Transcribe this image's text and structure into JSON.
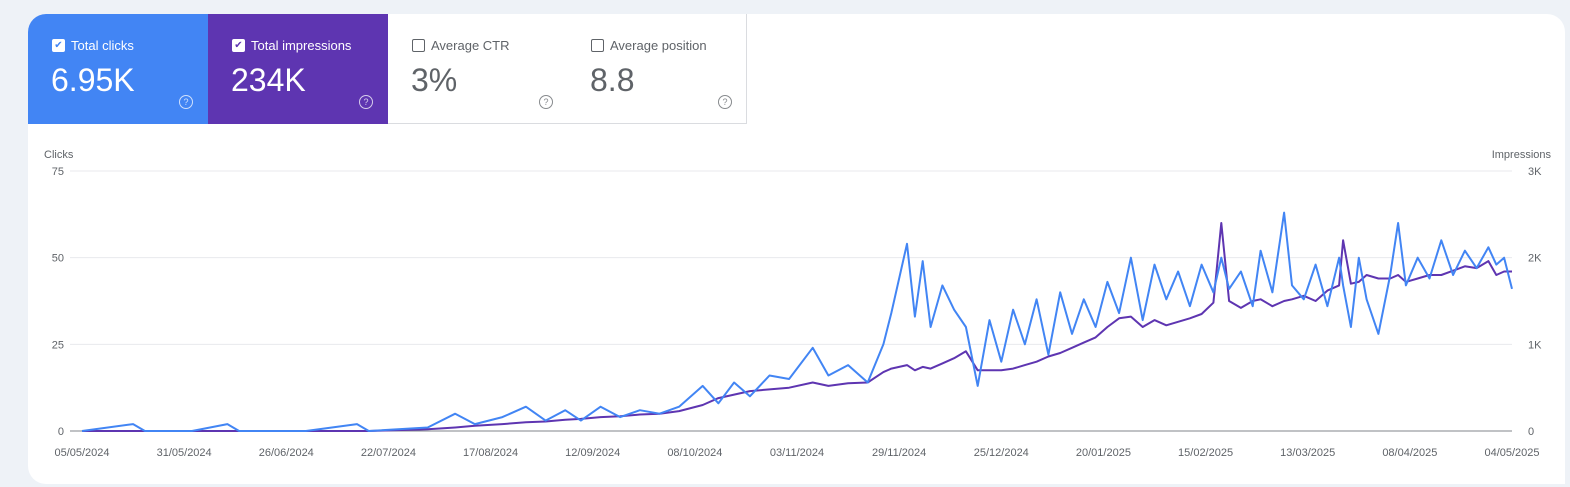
{
  "metrics": [
    {
      "label": "Total clicks",
      "value": "6.95K",
      "checked": true,
      "color": "#4285f4"
    },
    {
      "label": "Total impressions",
      "value": "234K",
      "checked": true,
      "color": "#5e35b1"
    },
    {
      "label": "Average CTR",
      "value": "3%",
      "checked": false
    },
    {
      "label": "Average position",
      "value": "8.8",
      "checked": false
    }
  ],
  "chart_data": {
    "type": "line",
    "left_axis_label": "Clicks",
    "right_axis_label": "Impressions",
    "left_ylim": [
      0,
      75
    ],
    "right_ylim": [
      0,
      3000
    ],
    "left_ticks": [
      "0",
      "25",
      "50",
      "75"
    ],
    "right_ticks": [
      "0",
      "1K",
      "2K",
      "3K"
    ],
    "x_range": [
      "2024-05-05",
      "2025-05-04"
    ],
    "x_ticks": [
      "05/05/2024",
      "31/05/2024",
      "26/06/2024",
      "22/07/2024",
      "17/08/2024",
      "12/09/2024",
      "08/10/2024",
      "03/11/2024",
      "29/11/2024",
      "25/12/2024",
      "20/01/2025",
      "15/02/2025",
      "13/03/2025",
      "08/04/2025",
      "04/05/2025"
    ],
    "grid": true,
    "series": [
      {
        "name": "Clicks",
        "axis": "left",
        "color": "#4285f4"
      },
      {
        "name": "Impressions",
        "axis": "right",
        "color": "#5e35b1"
      }
    ],
    "points": [
      [
        "2024-05-05",
        0,
        0
      ],
      [
        "2024-05-18",
        2,
        0
      ],
      [
        "2024-05-21",
        0,
        0
      ],
      [
        "2024-06-02",
        0,
        0
      ],
      [
        "2024-06-11",
        2,
        0
      ],
      [
        "2024-06-14",
        0,
        0
      ],
      [
        "2024-07-01",
        0,
        0
      ],
      [
        "2024-07-14",
        2,
        0
      ],
      [
        "2024-07-17",
        0,
        0
      ],
      [
        "2024-08-01",
        1,
        20
      ],
      [
        "2024-08-08",
        5,
        40
      ],
      [
        "2024-08-13",
        2,
        60
      ],
      [
        "2024-08-20",
        4,
        80
      ],
      [
        "2024-08-26",
        7,
        100
      ],
      [
        "2024-08-31",
        3,
        110
      ],
      [
        "2024-09-05",
        6,
        130
      ],
      [
        "2024-09-09",
        3,
        140
      ],
      [
        "2024-09-14",
        7,
        160
      ],
      [
        "2024-09-19",
        4,
        170
      ],
      [
        "2024-09-24",
        6,
        190
      ],
      [
        "2024-09-29",
        5,
        200
      ],
      [
        "2024-10-04",
        7,
        230
      ],
      [
        "2024-10-10",
        13,
        300
      ],
      [
        "2024-10-14",
        8,
        380
      ],
      [
        "2024-10-18",
        14,
        420
      ],
      [
        "2024-10-22",
        10,
        460
      ],
      [
        "2024-10-27",
        16,
        480
      ],
      [
        "2024-11-01",
        15,
        500
      ],
      [
        "2024-11-07",
        24,
        560
      ],
      [
        "2024-11-11",
        16,
        520
      ],
      [
        "2024-11-16",
        19,
        550
      ],
      [
        "2024-11-21",
        14,
        560
      ],
      [
        "2024-11-25",
        25,
        680
      ],
      [
        "2024-11-27",
        34,
        720
      ],
      [
        "2024-12-01",
        54,
        760
      ],
      [
        "2024-12-03",
        33,
        700
      ],
      [
        "2024-12-05",
        49,
        740
      ],
      [
        "2024-12-07",
        30,
        720
      ],
      [
        "2024-12-10",
        42,
        780
      ],
      [
        "2024-12-13",
        35,
        840
      ],
      [
        "2024-12-16",
        30,
        920
      ],
      [
        "2024-12-19",
        13,
        700
      ],
      [
        "2024-12-22",
        32,
        700
      ],
      [
        "2024-12-25",
        20,
        700
      ],
      [
        "2024-12-28",
        35,
        720
      ],
      [
        "2024-12-31",
        25,
        760
      ],
      [
        "2025-01-03",
        38,
        800
      ],
      [
        "2025-01-06",
        22,
        860
      ],
      [
        "2025-01-09",
        40,
        900
      ],
      [
        "2025-01-12",
        28,
        960
      ],
      [
        "2025-01-15",
        38,
        1020
      ],
      [
        "2025-01-18",
        30,
        1080
      ],
      [
        "2025-01-21",
        43,
        1200
      ],
      [
        "2025-01-24",
        34,
        1300
      ],
      [
        "2025-01-27",
        50,
        1320
      ],
      [
        "2025-01-30",
        32,
        1200
      ],
      [
        "2025-02-02",
        48,
        1280
      ],
      [
        "2025-02-05",
        38,
        1220
      ],
      [
        "2025-02-08",
        46,
        1260
      ],
      [
        "2025-02-11",
        36,
        1300
      ],
      [
        "2025-02-14",
        48,
        1350
      ],
      [
        "2025-02-17",
        40,
        1480
      ],
      [
        "2025-02-19",
        50,
        2400
      ],
      [
        "2025-02-21",
        41,
        1500
      ],
      [
        "2025-02-24",
        46,
        1420
      ],
      [
        "2025-02-27",
        36,
        1500
      ],
      [
        "2025-03-01",
        52,
        1520
      ],
      [
        "2025-03-04",
        40,
        1440
      ],
      [
        "2025-03-07",
        63,
        1500
      ],
      [
        "2025-03-09",
        42,
        1520
      ],
      [
        "2025-03-12",
        38,
        1560
      ],
      [
        "2025-03-15",
        48,
        1500
      ],
      [
        "2025-03-18",
        36,
        1620
      ],
      [
        "2025-03-21",
        50,
        1680
      ],
      [
        "2025-03-22",
        42,
        2200
      ],
      [
        "2025-03-24",
        30,
        1700
      ],
      [
        "2025-03-26",
        50,
        1720
      ],
      [
        "2025-03-28",
        38,
        1800
      ],
      [
        "2025-03-31",
        28,
        1760
      ],
      [
        "2025-04-03",
        45,
        1760
      ],
      [
        "2025-04-05",
        60,
        1800
      ],
      [
        "2025-04-07",
        42,
        1720
      ],
      [
        "2025-04-10",
        50,
        1760
      ],
      [
        "2025-04-13",
        44,
        1800
      ],
      [
        "2025-04-16",
        55,
        1800
      ],
      [
        "2025-04-19",
        45,
        1850
      ],
      [
        "2025-04-22",
        52,
        1900
      ],
      [
        "2025-04-25",
        47,
        1880
      ],
      [
        "2025-04-28",
        53,
        1960
      ],
      [
        "2025-04-30",
        48,
        1800
      ],
      [
        "2025-05-02",
        50,
        1840
      ],
      [
        "2025-05-04",
        41,
        1840
      ]
    ]
  }
}
